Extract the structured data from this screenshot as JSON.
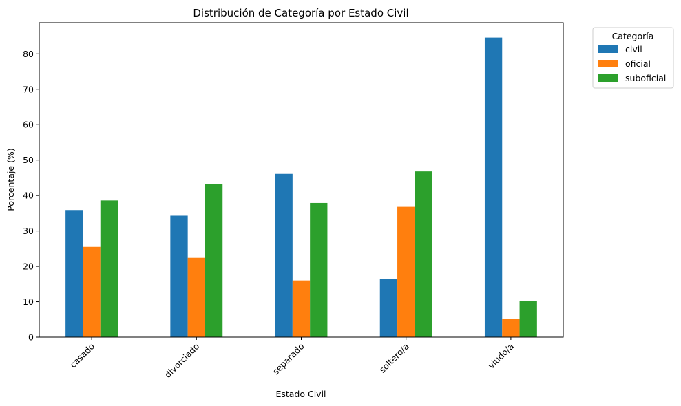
{
  "chart_data": {
    "type": "bar",
    "title": "Distribución de Categoría por Estado Civil",
    "xlabel": "Estado Civil",
    "ylabel": "Porcentaje (%)",
    "categories": [
      "casado",
      "divorciado",
      "separado",
      "soltero/a",
      "viudo/a"
    ],
    "series": [
      {
        "name": "civil",
        "color": "#1f77b4",
        "values": [
          35.9,
          34.3,
          46.1,
          16.4,
          84.6
        ]
      },
      {
        "name": "oficial",
        "color": "#ff7f0e",
        "values": [
          25.5,
          22.4,
          16.0,
          36.8,
          5.1
        ]
      },
      {
        "name": "suboficial",
        "color": "#2ca02c",
        "values": [
          38.6,
          43.3,
          37.9,
          46.8,
          10.3
        ]
      }
    ],
    "ylim": [
      0,
      88.8
    ],
    "yticks": [
      0,
      10,
      20,
      30,
      40,
      50,
      60,
      70,
      80
    ],
    "grid": false,
    "legend": {
      "title": "Categoría",
      "placement": "outside-top-right"
    }
  }
}
